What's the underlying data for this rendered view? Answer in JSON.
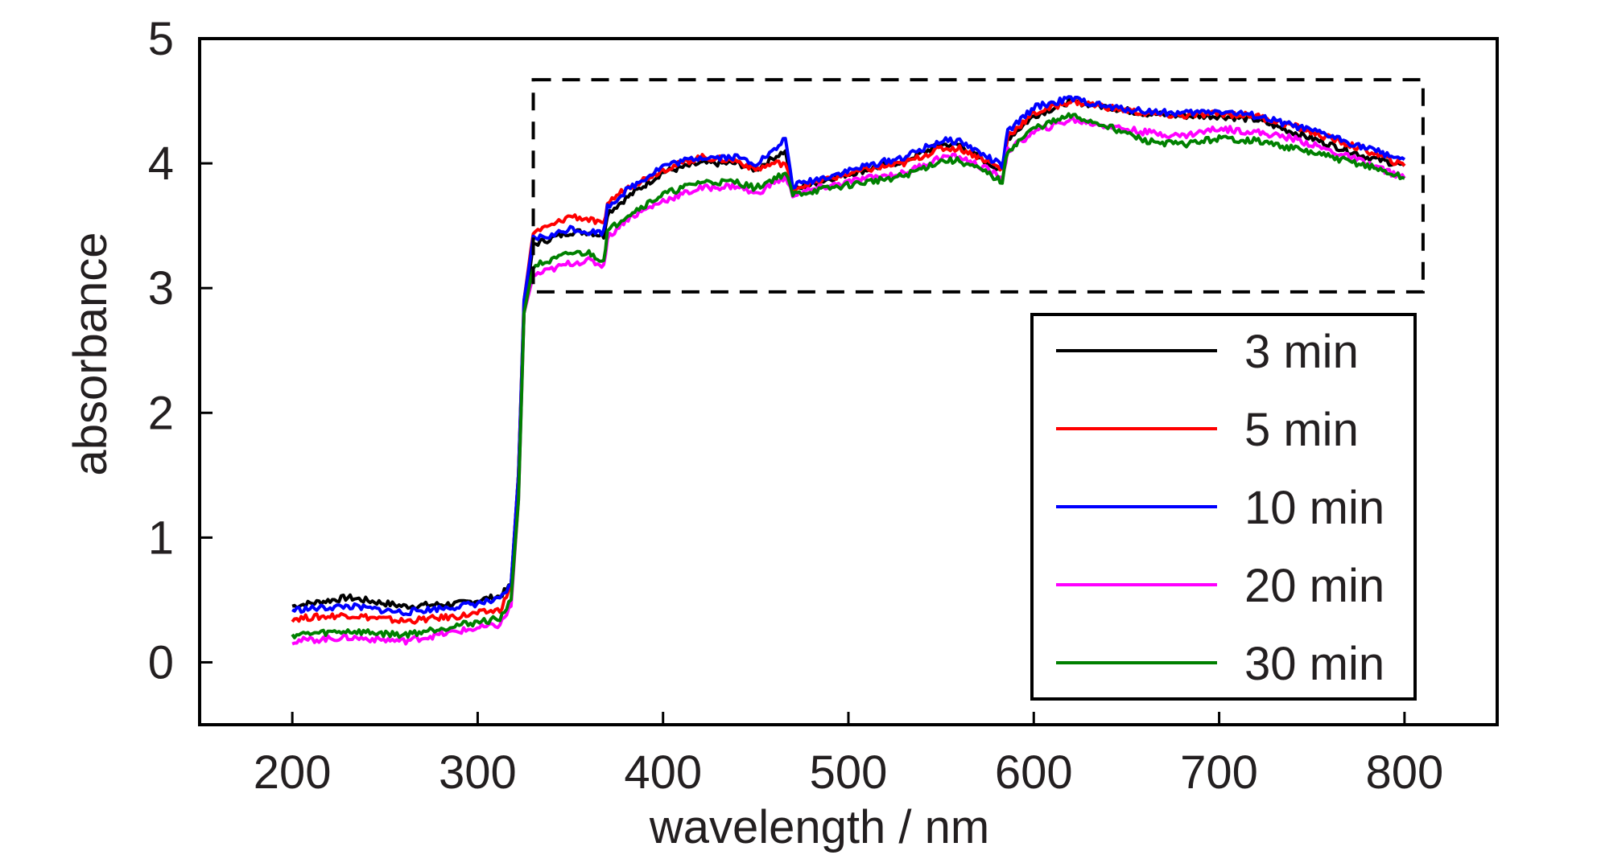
{
  "chart_data": {
    "type": "line",
    "title": "",
    "xlabel": "wavelength / nm",
    "ylabel": "absorbance",
    "xlim": [
      150,
      850
    ],
    "ylim": [
      -0.5,
      5
    ],
    "xticks": [
      "200",
      "300",
      "400",
      "500",
      "600",
      "700",
      "800"
    ],
    "yticks": [
      "0",
      "1",
      "2",
      "3",
      "4",
      "5"
    ],
    "xtick_values": [
      200,
      300,
      400,
      500,
      600,
      700,
      800
    ],
    "ytick_values": [
      0,
      1,
      2,
      3,
      4,
      5
    ],
    "grid": false,
    "legend_position": "bottom-right",
    "highlight_box": {
      "x": [
        330,
        810
      ],
      "y": [
        2.97,
        4.67
      ],
      "style": "dashed"
    },
    "x": [
      200,
      230,
      260,
      290,
      312,
      318,
      322,
      325,
      330,
      340,
      350,
      360,
      368,
      370,
      380,
      400,
      420,
      440,
      450,
      460,
      466,
      470,
      490,
      510,
      530,
      550,
      560,
      575,
      583,
      586,
      600,
      620,
      640,
      660,
      680,
      700,
      720,
      740,
      760,
      780,
      800
    ],
    "series": [
      {
        "name": "3 min",
        "color": "#000000",
        "values": [
          0.45,
          0.52,
          0.45,
          0.47,
          0.53,
          0.62,
          1.5,
          2.8,
          3.35,
          3.4,
          3.45,
          3.45,
          3.42,
          3.6,
          3.72,
          3.93,
          4.0,
          4.0,
          3.95,
          4.05,
          4.1,
          3.78,
          3.88,
          3.95,
          4.02,
          4.15,
          4.15,
          4.0,
          3.95,
          4.2,
          4.38,
          4.5,
          4.45,
          4.4,
          4.38,
          4.38,
          4.35,
          4.25,
          4.15,
          4.05,
          3.98
        ]
      },
      {
        "name": "5 min",
        "color": "#ff0000",
        "values": [
          0.35,
          0.38,
          0.33,
          0.37,
          0.42,
          0.6,
          1.5,
          2.9,
          3.45,
          3.5,
          3.58,
          3.55,
          3.5,
          3.68,
          3.8,
          3.95,
          4.05,
          4.02,
          3.95,
          4.0,
          4.0,
          3.8,
          3.88,
          3.95,
          4.0,
          4.12,
          4.12,
          4.02,
          3.95,
          4.22,
          4.4,
          4.5,
          4.45,
          4.4,
          4.38,
          4.4,
          4.38,
          4.3,
          4.2,
          4.1,
          3.98
        ]
      },
      {
        "name": "10 min",
        "color": "#0000ff",
        "values": [
          0.42,
          0.45,
          0.4,
          0.45,
          0.5,
          0.62,
          1.5,
          2.9,
          3.4,
          3.42,
          3.48,
          3.45,
          3.45,
          3.65,
          3.78,
          3.98,
          4.05,
          4.05,
          4.0,
          4.1,
          4.2,
          3.82,
          3.9,
          3.98,
          4.05,
          4.18,
          4.18,
          4.05,
          3.98,
          4.25,
          4.45,
          4.52,
          4.45,
          4.42,
          4.4,
          4.42,
          4.38,
          4.3,
          4.22,
          4.12,
          4.03
        ]
      },
      {
        "name": "20 min",
        "color": "#ff00ff",
        "values": [
          0.17,
          0.2,
          0.17,
          0.25,
          0.3,
          0.45,
          1.3,
          2.8,
          3.1,
          3.15,
          3.2,
          3.22,
          3.18,
          3.4,
          3.55,
          3.7,
          3.8,
          3.82,
          3.75,
          3.85,
          3.88,
          3.75,
          3.82,
          3.88,
          3.92,
          4.05,
          4.05,
          3.95,
          3.88,
          4.1,
          4.25,
          4.35,
          4.3,
          4.25,
          4.22,
          4.28,
          4.25,
          4.2,
          4.1,
          4.0,
          3.88
        ]
      },
      {
        "name": "30 min",
        "color": "#008000",
        "values": [
          0.22,
          0.25,
          0.22,
          0.3,
          0.35,
          0.5,
          1.3,
          2.8,
          3.18,
          3.22,
          3.28,
          3.28,
          3.22,
          3.45,
          3.58,
          3.75,
          3.85,
          3.85,
          3.8,
          3.88,
          3.92,
          3.75,
          3.8,
          3.85,
          3.9,
          4.02,
          4.02,
          3.92,
          3.85,
          4.1,
          4.28,
          4.38,
          4.3,
          4.18,
          4.15,
          4.2,
          4.18,
          4.12,
          4.05,
          3.98,
          3.88
        ]
      }
    ]
  }
}
